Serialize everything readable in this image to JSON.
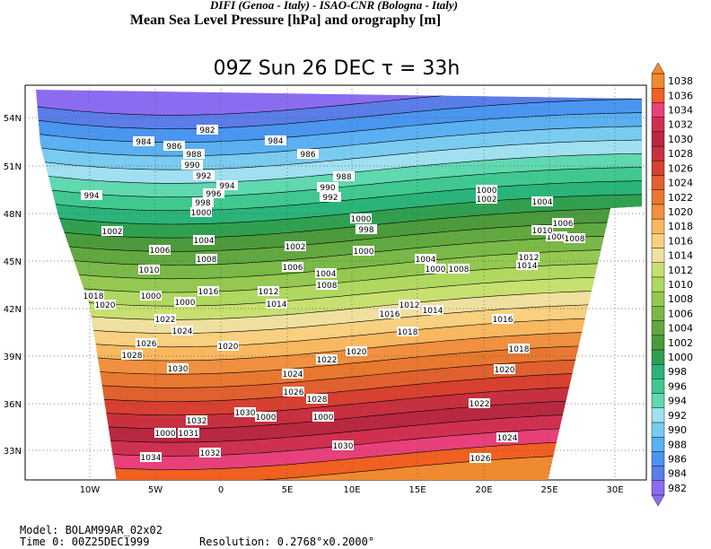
{
  "header": {
    "credit": "DIFI (Genoa - Italy)  -  ISAO-CNR (Bologna - Italy)",
    "title": "Mean Sea Level Pressure [hPa] and orography [m]",
    "time_title": "09Z Sun 26 DEC  τ = 33h"
  },
  "map": {
    "x_labels": [
      "10W",
      "5W",
      "0",
      "5E",
      "10E",
      "15E",
      "20E",
      "25E",
      "30E"
    ],
    "y_labels": [
      "54N",
      "51N",
      "48N",
      "45N",
      "42N",
      "39N",
      "36N",
      "33N"
    ],
    "contour_labels": [
      "982",
      "984",
      "986",
      "984",
      "986",
      "988",
      "990",
      "992",
      "994",
      "996",
      "998",
      "1000",
      "994",
      "988",
      "990",
      "992",
      "1002",
      "1004",
      "1006",
      "1008",
      "1010",
      "1000",
      "1000",
      "1002",
      "1004",
      "1006",
      "1000",
      "1010",
      "1008",
      "1002",
      "998",
      "1000",
      "1006",
      "1004",
      "1008",
      "1012",
      "1014",
      "1016",
      "1000",
      "1000",
      "1018",
      "1020",
      "1022",
      "1024",
      "1026",
      "1028",
      "1030",
      "1020",
      "1004",
      "1000",
      "1008",
      "1014",
      "1012",
      "1016",
      "1012",
      "1014",
      "1018",
      "1016",
      "1018",
      "1020",
      "1020",
      "1022",
      "1024",
      "1026",
      "1028",
      "1000",
      "1030",
      "1000",
      "1022",
      "1024",
      "1030",
      "1026",
      "1032",
      "1000",
      "1031",
      "1032",
      "1034"
    ]
  },
  "colorbar": {
    "levels": [
      {
        "label": "982",
        "color": "#8b6cf0"
      },
      {
        "label": "984",
        "color": "#5a7de8"
      },
      {
        "label": "986",
        "color": "#4a95f0"
      },
      {
        "label": "988",
        "color": "#5ab0f0"
      },
      {
        "label": "990",
        "color": "#7acbf0"
      },
      {
        "label": "992",
        "color": "#a0e0f0"
      },
      {
        "label": "994",
        "color": "#60d8b0"
      },
      {
        "label": "996",
        "color": "#40c890"
      },
      {
        "label": "998",
        "color": "#2ab47a"
      },
      {
        "label": "1000",
        "color": "#30a050"
      },
      {
        "label": "1002",
        "color": "#4c9a3c"
      },
      {
        "label": "1004",
        "color": "#62a840"
      },
      {
        "label": "1006",
        "color": "#7ab848"
      },
      {
        "label": "1008",
        "color": "#94c850"
      },
      {
        "label": "1010",
        "color": "#b0d860"
      },
      {
        "label": "1012",
        "color": "#c8e070"
      },
      {
        "label": "1014",
        "color": "#f0e0a0"
      },
      {
        "label": "1016",
        "color": "#f8d080"
      },
      {
        "label": "1018",
        "color": "#f8b860"
      },
      {
        "label": "1020",
        "color": "#f09040"
      },
      {
        "label": "1022",
        "color": "#e87830"
      },
      {
        "label": "1024",
        "color": "#e06030"
      },
      {
        "label": "1026",
        "color": "#d84030"
      },
      {
        "label": "1028",
        "color": "#c83040"
      },
      {
        "label": "1030",
        "color": "#b82840"
      },
      {
        "label": "1032",
        "color": "#d03050"
      },
      {
        "label": "1034",
        "color": "#e8407a"
      },
      {
        "label": "1036",
        "color": "#f06020"
      },
      {
        "label": "1038",
        "color": "#f08a30"
      }
    ]
  },
  "footer": {
    "model": "Model: BOLAM99AR_02x02",
    "time": "Time 0: 00Z25DEC1999",
    "resolution": "Resolution: 0.2768°x0.2000°"
  }
}
